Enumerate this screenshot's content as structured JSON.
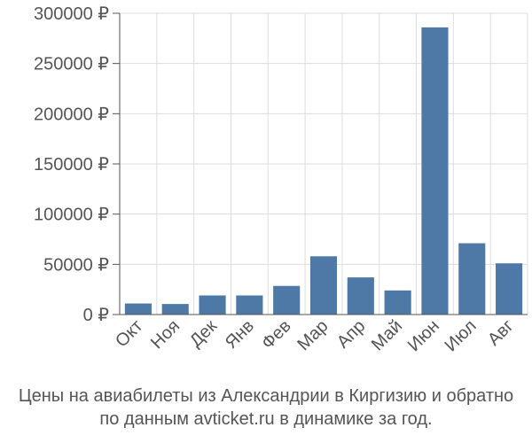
{
  "chart_data": {
    "type": "bar",
    "categories": [
      "Окт",
      "Ноя",
      "Дек",
      "Янв",
      "Фев",
      "Мар",
      "Апр",
      "Май",
      "Июн",
      "Июл",
      "Авг"
    ],
    "values": [
      11000,
      10500,
      19000,
      19000,
      28500,
      58000,
      37000,
      24000,
      286000,
      71000,
      51000
    ],
    "ylim": [
      0,
      300000
    ],
    "yticks": [
      0,
      50000,
      100000,
      150000,
      200000,
      250000,
      300000
    ],
    "ytick_labels": [
      "0 ₽",
      "50000 ₽",
      "100000 ₽",
      "150000 ₽",
      "200000 ₽",
      "250000 ₽",
      "300000 ₽"
    ],
    "grid": true,
    "bar_color": "#4e79a7",
    "grid_color": "#dddddd",
    "axis_color": "#555555",
    "caption_line1": "Цены на авиабилеты из Александрии в Киргизию и обратно",
    "caption_line2": "по данным avticket.ru в динамике за год."
  }
}
